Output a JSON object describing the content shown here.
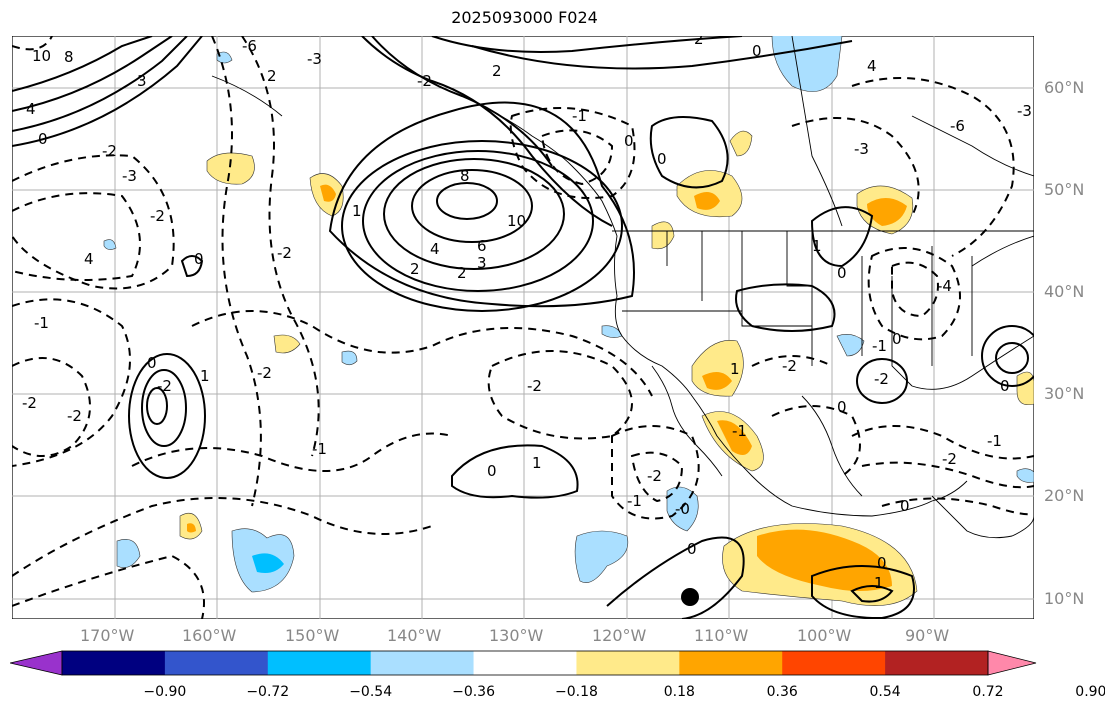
{
  "title": "2025093000 F024",
  "lon_labels": [
    "170°W",
    "160°W",
    "150°W",
    "140°W",
    "130°W",
    "120°W",
    "110°W",
    "100°W",
    "90°W"
  ],
  "lat_labels": [
    "60°N",
    "50°N",
    "40°N",
    "30°N",
    "20°N",
    "10°N"
  ],
  "colorbar": {
    "colors": [
      "#9932cc",
      "#000080",
      "#3355cc",
      "#00bfff",
      "#aadfff",
      "#ffffff",
      "#ffea8a",
      "#ffa500",
      "#ff4500",
      "#b22222",
      "#ff88aa"
    ],
    "tick_labels": [
      "−0.90",
      "−0.72",
      "−0.54",
      "−0.36",
      "−0.18",
      "0.18",
      "0.36",
      "0.54",
      "0.72",
      "0.90"
    ]
  },
  "contour_labels": [
    "10",
    "8",
    "6",
    "4",
    "3",
    "2",
    "1",
    "0",
    "-1",
    "-2",
    "-3",
    "-4",
    "-6"
  ],
  "colors": {
    "contour": "#000000",
    "grid": "#b0b0b0",
    "land_line": "#000000",
    "marker": "#000000"
  }
}
